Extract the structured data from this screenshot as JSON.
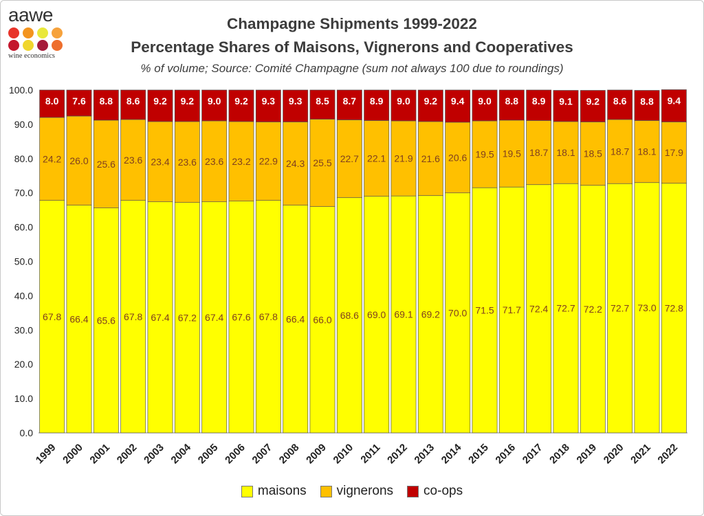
{
  "logo": {
    "word": "aawe",
    "sub": "wine economics",
    "dot_colors": [
      "#e8342a",
      "#f3941f",
      "#e9e83b",
      "#f6a23c",
      "#c4172d",
      "#f0d62e",
      "#a51c3a",
      "#ee6f2d"
    ]
  },
  "colors": {
    "maisons": "#ffff00",
    "vignerons": "#ffc000",
    "coops": "#c00000",
    "label_text": "#7f3f1f",
    "coop_label_text": "#ffffff"
  },
  "chart_data": {
    "type": "bar",
    "stacked": true,
    "title": "Champagne Shipments 1999-2022",
    "subtitle": "Percentage Shares of Maisons, Vignerons and Cooperatives",
    "note": "% of volume; Source: Comité Champagne (sum not always 100 due to roundings)",
    "ylim": [
      0,
      100
    ],
    "yticks": [
      "0.0",
      "10.0",
      "20.0",
      "30.0",
      "40.0",
      "50.0",
      "60.0",
      "70.0",
      "80.0",
      "90.0",
      "100.0"
    ],
    "categories": [
      "1999",
      "2000",
      "2001",
      "2002",
      "2003",
      "2004",
      "2005",
      "2006",
      "2007",
      "2008",
      "2009",
      "2010",
      "2011",
      "2012",
      "2013",
      "2014",
      "2015",
      "2016",
      "2017",
      "2018",
      "2019",
      "2020",
      "2021",
      "2022"
    ],
    "series": [
      {
        "name": "maisons",
        "values": [
          67.8,
          66.4,
          65.6,
          67.8,
          67.4,
          67.2,
          67.4,
          67.6,
          67.8,
          66.4,
          66.0,
          68.6,
          69.0,
          69.1,
          69.2,
          70.0,
          71.5,
          71.7,
          72.4,
          72.7,
          72.2,
          72.7,
          73.0,
          72.8
        ]
      },
      {
        "name": "vignerons",
        "values": [
          24.2,
          26.0,
          25.6,
          23.6,
          23.4,
          23.6,
          23.6,
          23.2,
          22.9,
          24.3,
          25.5,
          22.7,
          22.1,
          21.9,
          21.6,
          20.6,
          19.5,
          19.5,
          18.7,
          18.1,
          18.5,
          18.7,
          18.1,
          17.9
        ]
      },
      {
        "name": "co-ops",
        "values": [
          8.0,
          7.6,
          8.8,
          8.6,
          9.2,
          9.2,
          9.0,
          9.2,
          9.3,
          9.3,
          8.5,
          8.7,
          8.9,
          9.0,
          9.2,
          9.4,
          9.0,
          8.8,
          8.9,
          9.1,
          9.2,
          8.6,
          8.8,
          9.4
        ]
      }
    ],
    "legend": "bottom"
  }
}
